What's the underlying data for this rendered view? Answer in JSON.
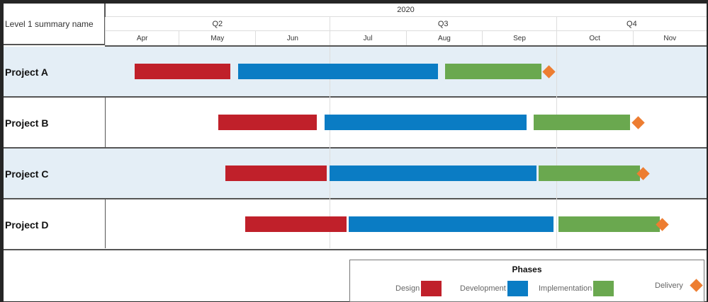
{
  "header": {
    "first_col": "Level 1 summary name",
    "year": "2020",
    "quarters": [
      "Q2",
      "Q3",
      "Q4"
    ],
    "months": [
      "Apr",
      "May",
      "Jun",
      "Jul",
      "Aug",
      "Sep",
      "Oct",
      "Nov"
    ]
  },
  "colors": {
    "Design": "#c0202a",
    "Development": "#0a7cc4",
    "Implementation": "#6aa84f",
    "Delivery": "#ed7d31"
  },
  "projects": [
    {
      "name": "Project A",
      "design": [
        "2020-04-13",
        "2020-05-22"
      ],
      "development": [
        "2020-05-25",
        "2020-08-14"
      ],
      "implementation": [
        "2020-08-17",
        "2020-09-25"
      ],
      "delivery": "2020-09-28"
    },
    {
      "name": "Project B",
      "design": [
        "2020-05-17",
        "2020-06-26"
      ],
      "development": [
        "2020-06-29",
        "2020-09-19"
      ],
      "implementation": [
        "2020-09-22",
        "2020-10-31"
      ],
      "delivery": "2020-11-03"
    },
    {
      "name": "Project C",
      "design": [
        "2020-05-20",
        "2020-06-30"
      ],
      "development": [
        "2020-07-01",
        "2020-09-23"
      ],
      "implementation": [
        "2020-09-24",
        "2020-11-04"
      ],
      "delivery": "2020-11-05"
    },
    {
      "name": "Project D",
      "design": [
        "2020-05-28",
        "2020-07-08"
      ],
      "development": [
        "2020-07-09",
        "2020-09-30"
      ],
      "implementation": [
        "2020-10-02",
        "2020-11-12"
      ],
      "delivery": "2020-11-13"
    }
  ],
  "legend": {
    "title": "Phases",
    "items": [
      "Design",
      "Development",
      "Implementation",
      "Delivery"
    ]
  }
}
